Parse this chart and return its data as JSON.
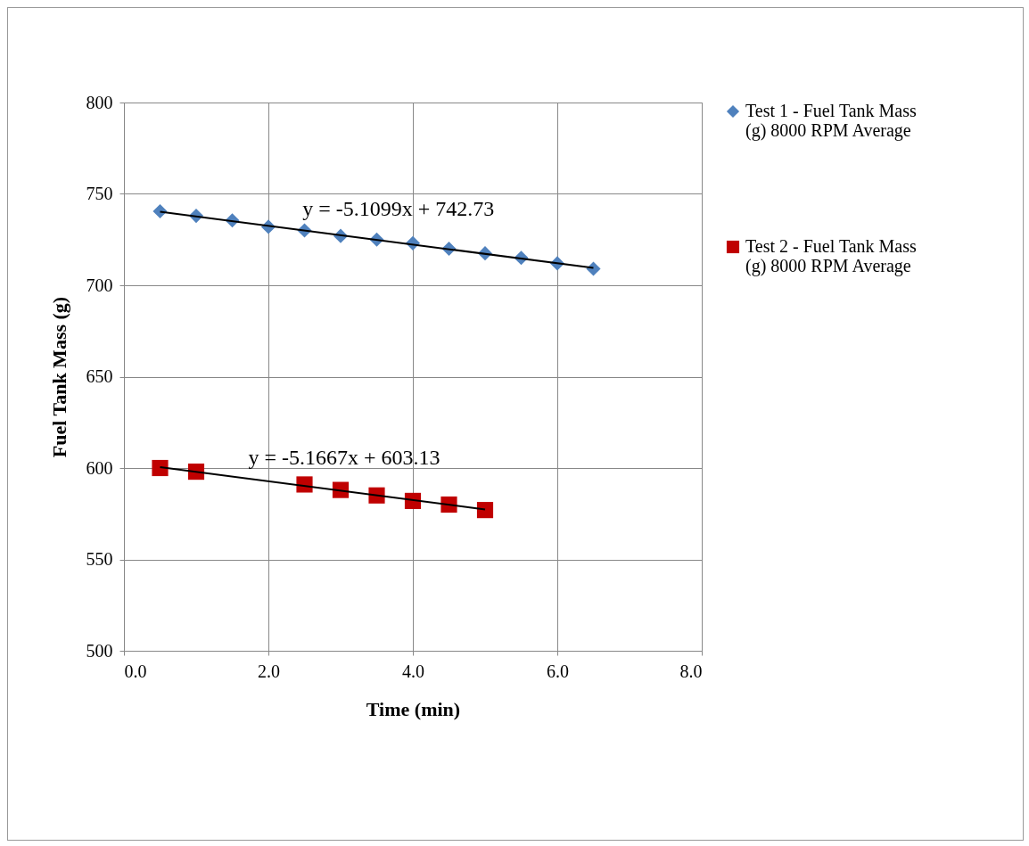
{
  "chart_data": {
    "type": "scatter",
    "xlabel": "Time (min)",
    "ylabel": "Fuel Tank Mass (g)",
    "xlim": [
      0,
      8
    ],
    "xticks": [
      {
        "value": 0,
        "label": "0.0"
      },
      {
        "value": 2,
        "label": "2.0"
      },
      {
        "value": 4,
        "label": "4.0"
      },
      {
        "value": 6,
        "label": "6.0"
      },
      {
        "value": 8,
        "label": "8.0"
      }
    ],
    "ylim": [
      500,
      800
    ],
    "yticks": [
      500,
      550,
      600,
      650,
      700,
      750,
      800
    ],
    "grid": true,
    "legend": "right",
    "series": [
      {
        "name": "Test 1 - Fuel Tank Mass (g) 8000 RPM Average",
        "color": "#4f81bd",
        "marker": "diamond",
        "x": [
          0.5,
          1.0,
          1.5,
          2.0,
          2.5,
          3.0,
          3.5,
          4.0,
          4.5,
          5.0,
          5.5,
          6.0,
          6.5
        ],
        "values": [
          740.5,
          738,
          735.5,
          732,
          730,
          727,
          725,
          723,
          720,
          717.5,
          715,
          712,
          709
        ]
      },
      {
        "name": "Test 2 - Fuel Tank Mass (g) 8000 RPM Average",
        "color": "#c00000",
        "marker": "square",
        "x": [
          0.5,
          1.0,
          2.5,
          3.0,
          3.5,
          4.0,
          4.5,
          5.0
        ],
        "values": [
          600,
          598,
          591,
          588,
          585,
          582,
          580,
          577
        ]
      },
      {
        "type": "line",
        "color": "#000000",
        "x": [
          0.5,
          6.5
        ],
        "values": [
          740.2,
          709.5
        ]
      },
      {
        "type": "line",
        "color": "#000000",
        "x": [
          0.5,
          5.0
        ],
        "values": [
          600.5,
          577.3
        ]
      }
    ],
    "annotations": [
      "y = -5.1099x + 742.73",
      "y = -5.1667x + 603.13"
    ]
  }
}
